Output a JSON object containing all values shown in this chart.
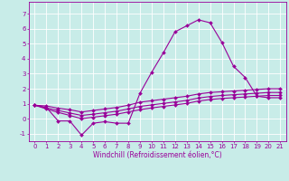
{
  "xlabel": "Windchill (Refroidissement éolien,°C)",
  "ylabel": "",
  "bg_color": "#c8ece8",
  "grid_color": "#ffffff",
  "line_color": "#990099",
  "xlim": [
    -0.5,
    21.5
  ],
  "ylim": [
    -1.5,
    7.8
  ],
  "xticks": [
    0,
    1,
    2,
    3,
    4,
    5,
    6,
    7,
    8,
    9,
    10,
    11,
    12,
    13,
    14,
    15,
    16,
    17,
    18,
    19,
    20,
    21
  ],
  "yticks": [
    -1,
    0,
    1,
    2,
    3,
    4,
    5,
    6,
    7
  ],
  "series": [
    [
      0.9,
      0.75,
      -0.15,
      -0.15,
      -1.1,
      -0.3,
      -0.2,
      -0.3,
      -0.3,
      1.7,
      3.1,
      4.4,
      5.8,
      6.2,
      6.6,
      6.4,
      5.1,
      3.5,
      2.75,
      1.5,
      1.4,
      1.4
    ],
    [
      0.9,
      0.85,
      0.7,
      0.6,
      0.45,
      0.55,
      0.65,
      0.75,
      0.9,
      1.1,
      1.2,
      1.3,
      1.4,
      1.5,
      1.65,
      1.75,
      1.8,
      1.85,
      1.9,
      1.95,
      2.0,
      2.0
    ],
    [
      0.9,
      0.72,
      0.55,
      0.38,
      0.22,
      0.3,
      0.4,
      0.5,
      0.65,
      0.82,
      0.92,
      1.02,
      1.12,
      1.22,
      1.38,
      1.48,
      1.55,
      1.6,
      1.65,
      1.7,
      1.75,
      1.75
    ],
    [
      0.9,
      0.65,
      0.42,
      0.22,
      0.0,
      0.1,
      0.2,
      0.3,
      0.45,
      0.6,
      0.72,
      0.82,
      0.92,
      1.02,
      1.18,
      1.28,
      1.35,
      1.4,
      1.45,
      1.5,
      1.55,
      1.55
    ]
  ],
  "tick_fontsize": 5,
  "xlabel_fontsize": 5.5,
  "marker_size": 2.0,
  "linewidth": 0.8
}
